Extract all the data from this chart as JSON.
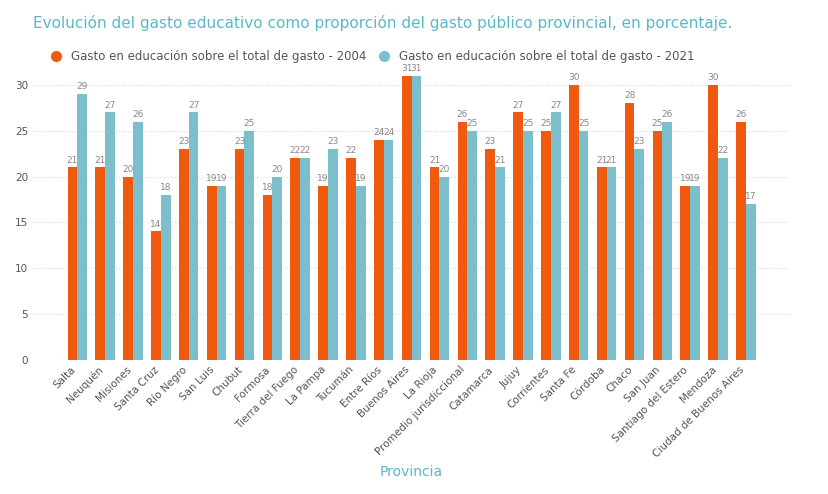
{
  "title": "Evolución del gasto educativo como proporción del gasto público provincial, en porcentaje.",
  "title_color": "#5bb8c8",
  "xlabel": "Provincia",
  "xlabel_color": "#5bb8c8",
  "legend_label_2004": "Gasto en educación sobre el total de gasto - 2004",
  "legend_label_2021": "Gasto en educación sobre el total de gasto - 2021",
  "color_2004": "#f05a0e",
  "color_2021": "#7bbfcc",
  "categories": [
    "Salta",
    "Neuquén",
    "Misiones",
    "Santa Cruz",
    "Río Negro",
    "San Luis",
    "Chubut",
    "Formosa",
    "Tierra del Fuego",
    "La Pampa",
    "Tucumán",
    "Entre Ríos",
    "Buenos Aires",
    "La Rioja",
    "Promedio jurisdiccional",
    "Catamarca",
    "Jujuy",
    "Corrientes",
    "Santa Fe",
    "Córdoba",
    "Chaco",
    "San Juan",
    "Santiago del Estero",
    "Mendoza",
    "Ciudad de Buenos Aires"
  ],
  "values_2004": [
    21,
    21,
    20,
    14,
    23,
    19,
    23,
    18,
    22,
    19,
    22,
    24,
    31,
    21,
    26,
    23,
    27,
    25,
    30,
    21,
    28,
    25,
    19,
    30,
    26
  ],
  "values_2021": [
    29,
    27,
    26,
    18,
    27,
    19,
    25,
    20,
    22,
    23,
    19,
    24,
    31,
    20,
    25,
    21,
    25,
    27,
    25,
    21,
    23,
    26,
    19,
    22,
    17
  ],
  "ylim": [
    0,
    35
  ],
  "yticks": [
    0,
    5,
    10,
    15,
    20,
    25,
    30
  ],
  "background_color": "#ffffff",
  "grid_color": "#d8d8d8",
  "bar_width": 0.35,
  "label_fontsize": 6.5,
  "title_fontsize": 11,
  "axis_label_fontsize": 10,
  "tick_label_fontsize": 7.5,
  "label_color": "#888888"
}
